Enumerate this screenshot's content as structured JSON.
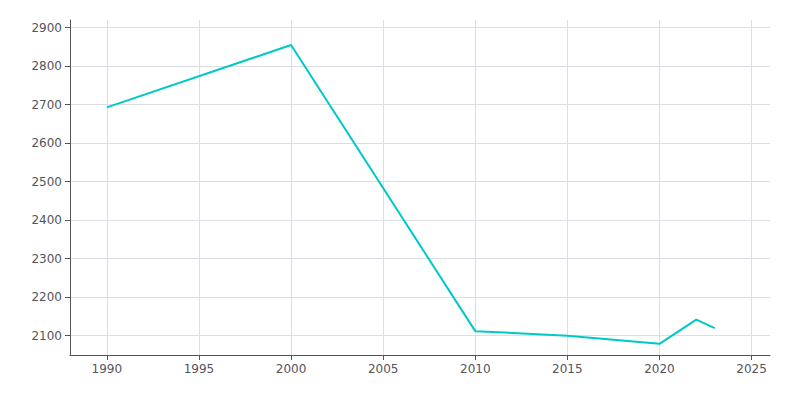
{
  "chart_data": {
    "type": "line",
    "x": [
      1990,
      2000,
      2010,
      2015,
      2020,
      2022,
      2023
    ],
    "values": [
      2693,
      2855,
      2112,
      2100,
      2079,
      2142,
      2120
    ],
    "color": "#00c8c8",
    "xlim": [
      1988,
      2026
    ],
    "ylim": [
      2050,
      2920
    ],
    "xticks": [
      1990,
      1995,
      2000,
      2005,
      2010,
      2015,
      2020,
      2025
    ],
    "yticks": [
      2100,
      2200,
      2300,
      2400,
      2500,
      2600,
      2700,
      2800,
      2900
    ],
    "grid": true
  }
}
